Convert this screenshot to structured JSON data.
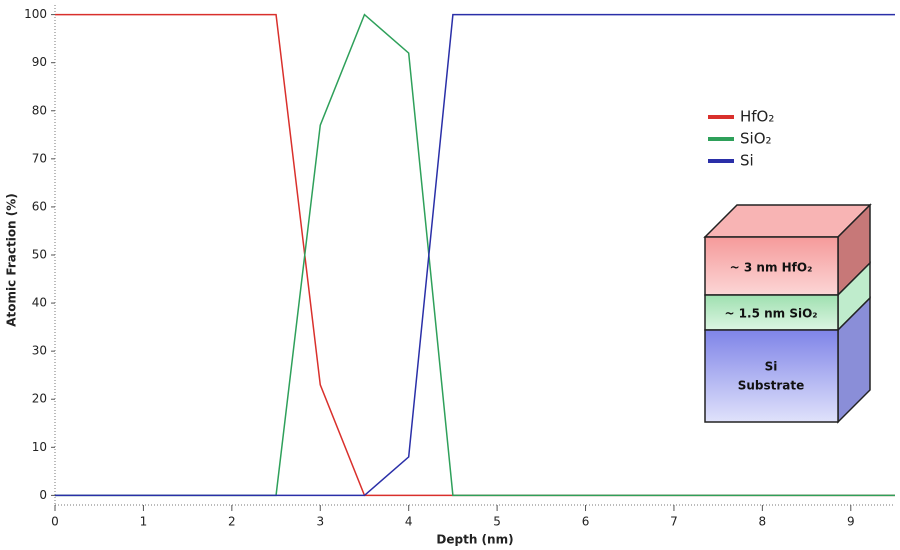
{
  "chart_data": {
    "type": "line",
    "x_label": "Depth (nm)",
    "y_label": "Atomic Fraction (%)",
    "x": [
      0,
      2.5,
      3,
      3.5,
      4,
      4.5,
      9.5
    ],
    "series": [
      {
        "name": "HfO₂",
        "color": "#d9302c",
        "values": [
          100,
          100,
          23,
          0,
          0,
          0,
          0
        ]
      },
      {
        "name": "SiO₂",
        "color": "#2ea05a",
        "values": [
          0,
          0,
          77,
          100,
          92,
          0,
          0
        ]
      },
      {
        "name": "Si",
        "color": "#2a2fa8",
        "values": [
          0,
          0,
          0,
          0,
          8,
          100,
          100
        ]
      }
    ],
    "xlim": [
      0,
      9.5
    ],
    "xticks": [
      0,
      1,
      2,
      3,
      4,
      5,
      6,
      7,
      8,
      9
    ],
    "ylim": [
      -2,
      102
    ],
    "yticks": [
      0,
      10,
      20,
      30,
      40,
      50,
      60,
      70,
      80,
      90,
      100
    ],
    "legend": "right",
    "annotations": [
      "~ 3 nm HfO₂",
      "~ 1.5 nm SiO₂",
      "Si",
      "Substrate"
    ]
  }
}
